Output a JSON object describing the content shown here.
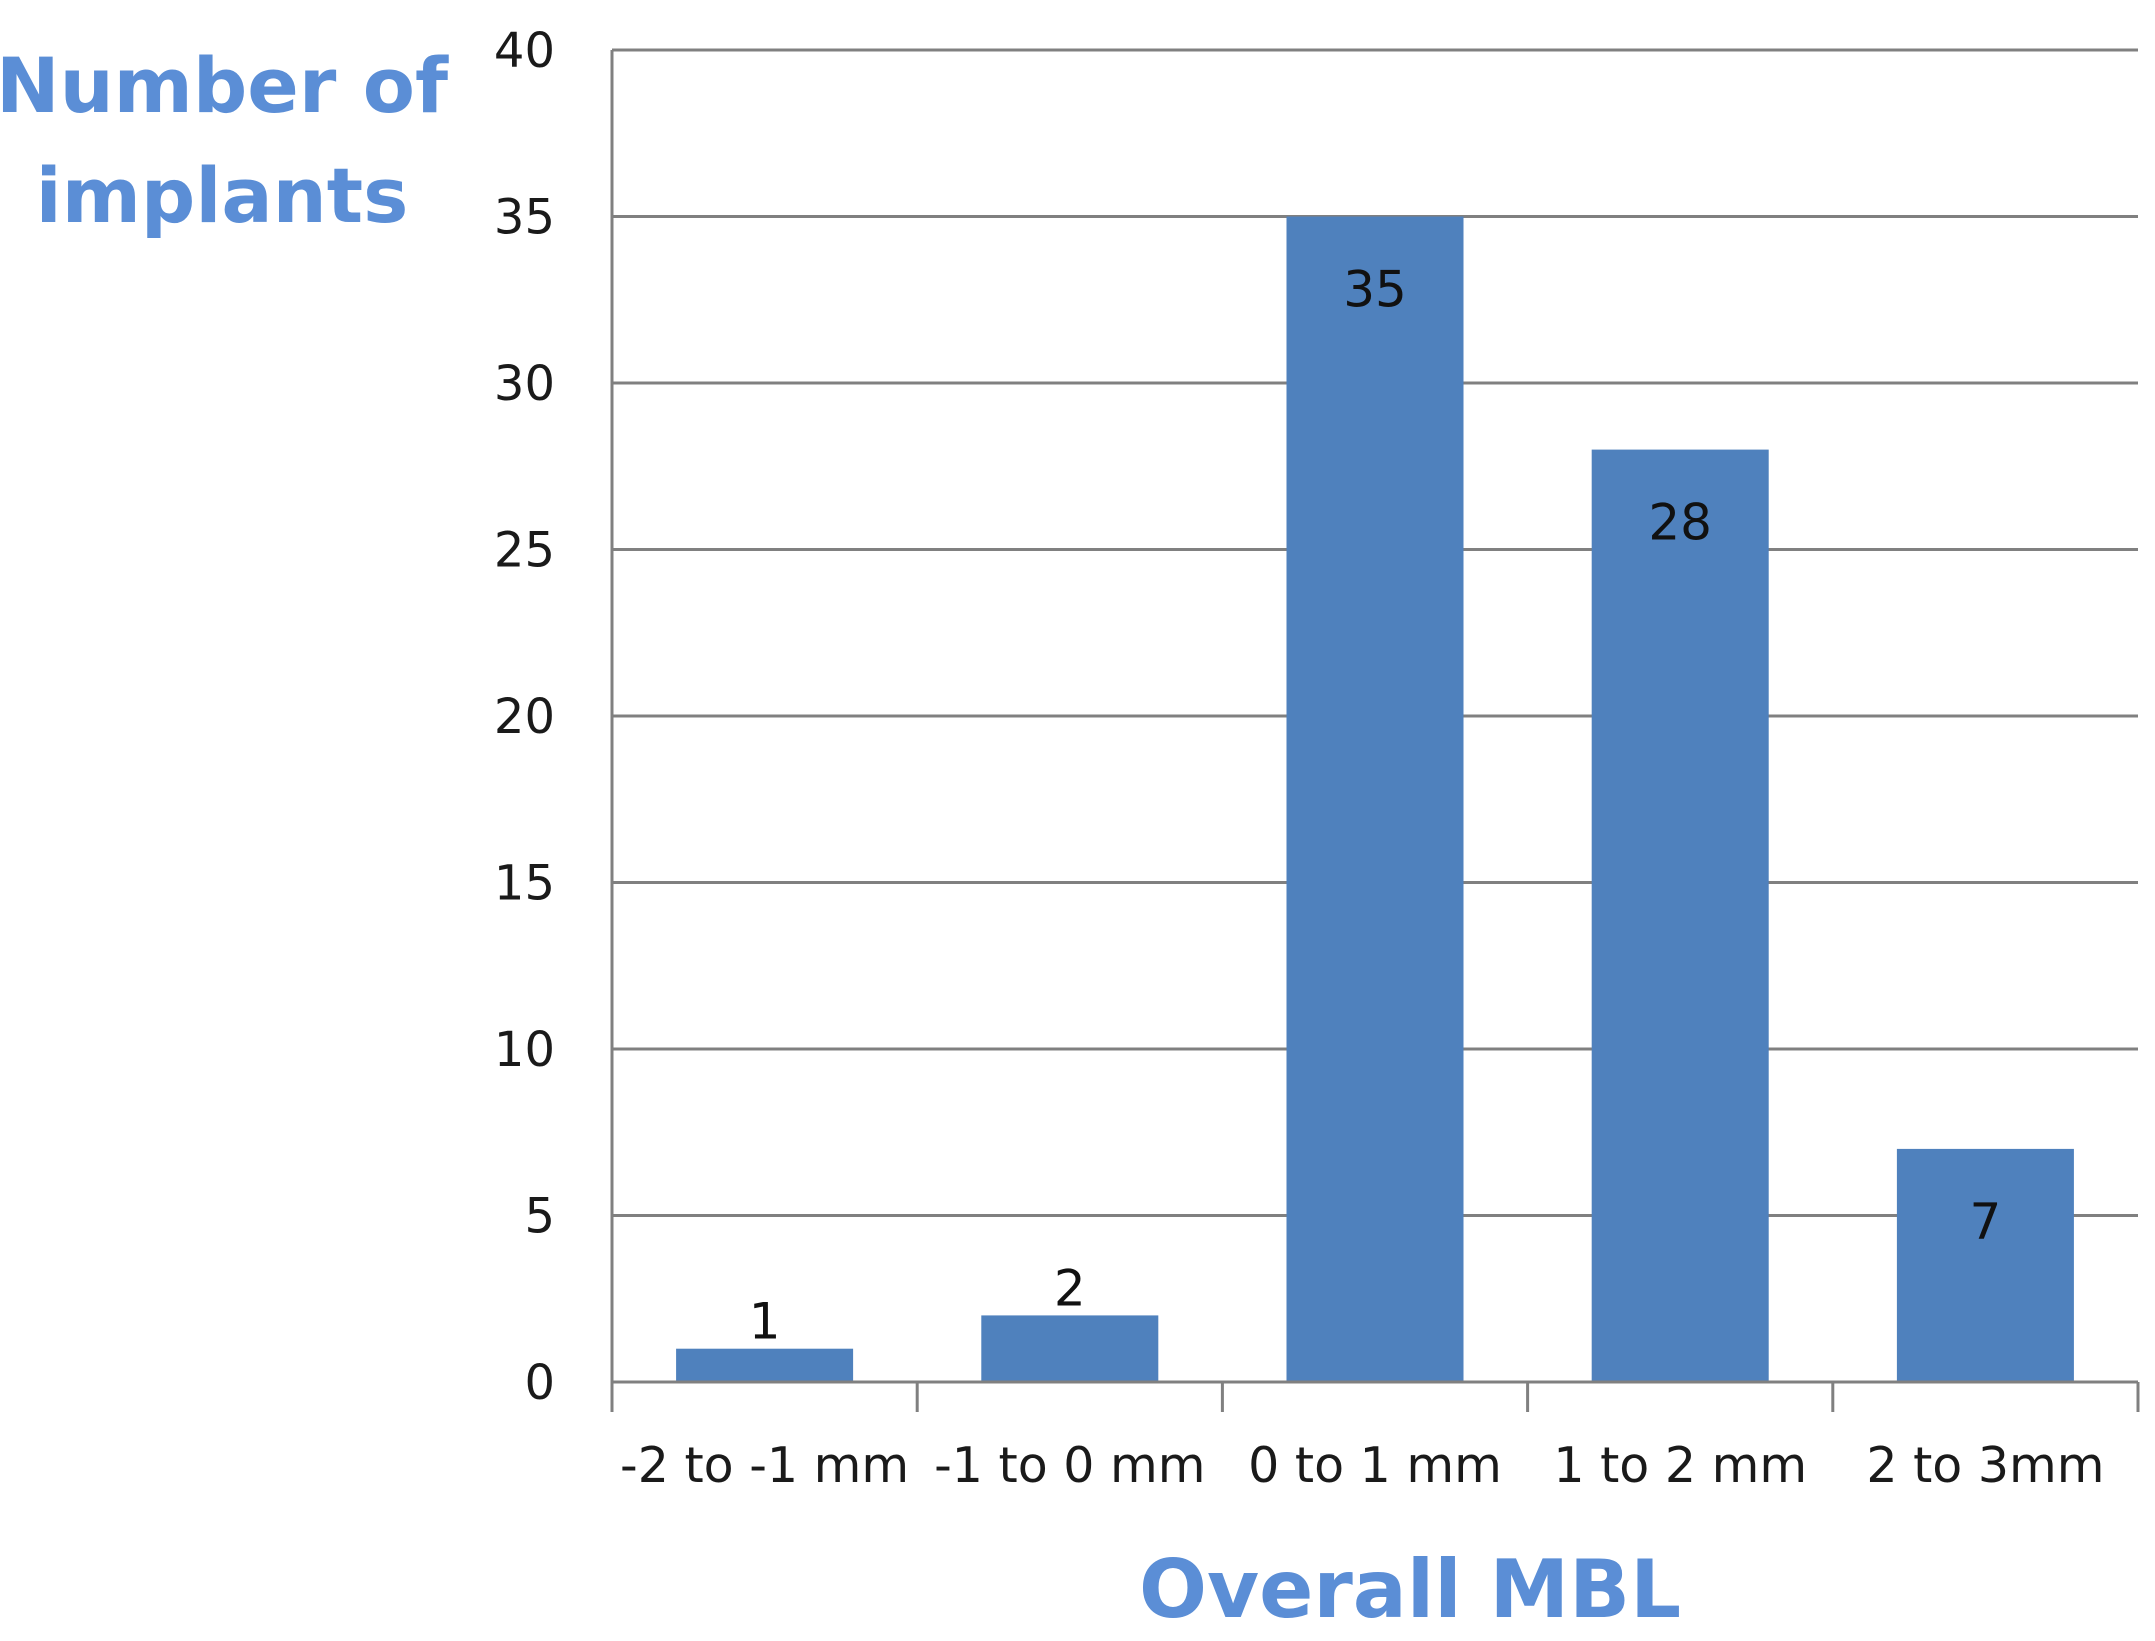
{
  "chart_data": {
    "type": "bar",
    "title": "",
    "ylabel_lines": [
      "Number of",
      "implants"
    ],
    "xlabel": "Overall MBL",
    "categories": [
      "-2 to -1 mm",
      "-1 to 0 mm",
      "0 to 1 mm",
      "1 to 2 mm",
      "2 to 3mm"
    ],
    "values": [
      1,
      2,
      35,
      28,
      7
    ],
    "data_labels": [
      "1",
      "2",
      "35",
      "28",
      "7"
    ],
    "ylim": [
      0,
      40
    ],
    "yticks": [
      0,
      5,
      10,
      15,
      20,
      25,
      30,
      35,
      40
    ],
    "grid": true,
    "legend": "none",
    "colors": {
      "bar": "#4F81BD",
      "axis_title": "#5B8ED6",
      "gridline": "#808080"
    }
  }
}
